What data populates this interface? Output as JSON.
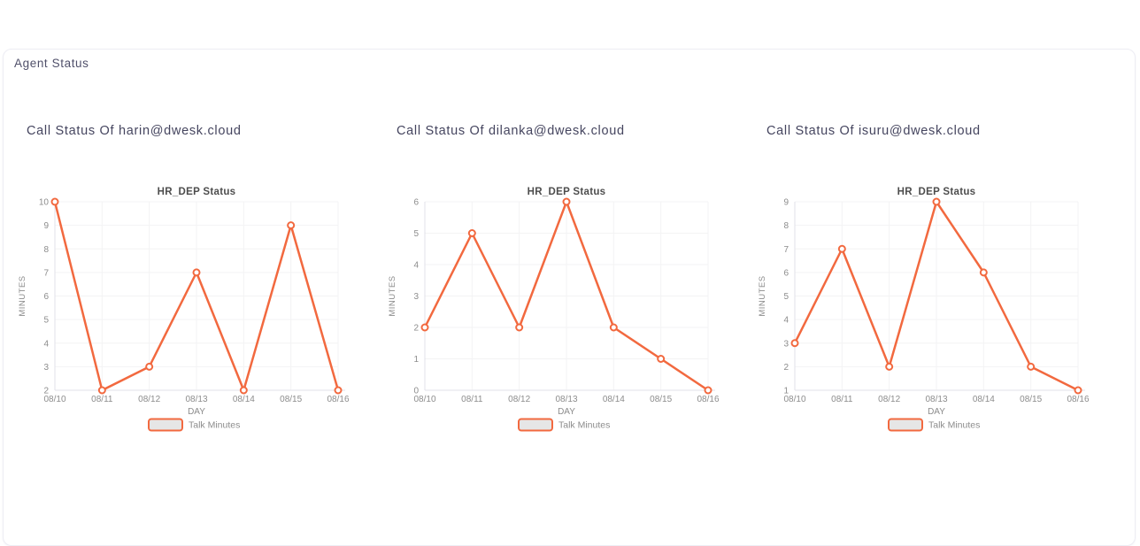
{
  "page": {
    "title": "Agent Status"
  },
  "colors": {
    "line": "#F2693F",
    "marker_fill": "#FFFFFF",
    "legend_fill": "#E6E6E6",
    "grid": "#F3F3F4",
    "axis_line": "#E2E2E8",
    "tick_text": "#8C8C8C",
    "axis_label_text": "#8C8C8C",
    "chart_title_text": "#4D4D4D",
    "heading_text": "#45455F"
  },
  "chart_data": [
    {
      "type": "line",
      "heading": "Call Status Of harin@dwesk.cloud",
      "title": "HR_DEP Status",
      "xlabel": "DAY",
      "ylabel": "MINUTES",
      "categories": [
        "08/10",
        "08/11",
        "08/12",
        "08/13",
        "08/14",
        "08/15",
        "08/16"
      ],
      "series": [
        {
          "name": "Talk Minutes",
          "values": [
            10,
            2,
            3,
            7,
            2,
            9,
            2
          ]
        }
      ],
      "ylim": [
        2,
        10
      ],
      "ytick_step": 1,
      "grid": true,
      "legend_position": "bottom"
    },
    {
      "type": "line",
      "heading": "Call Status Of dilanka@dwesk.cloud",
      "title": "HR_DEP Status",
      "xlabel": "DAY",
      "ylabel": "MINUTES",
      "categories": [
        "08/10",
        "08/11",
        "08/12",
        "08/13",
        "08/14",
        "08/15",
        "08/16"
      ],
      "series": [
        {
          "name": "Talk Minutes",
          "values": [
            2,
            5,
            2,
            6,
            2,
            1,
            0
          ]
        }
      ],
      "ylim": [
        0,
        6
      ],
      "ytick_step": 1,
      "grid": true,
      "legend_position": "bottom"
    },
    {
      "type": "line",
      "heading": "Call Status Of isuru@dwesk.cloud",
      "title": "HR_DEP Status",
      "xlabel": "DAY",
      "ylabel": "MINUTES",
      "categories": [
        "08/10",
        "08/11",
        "08/12",
        "08/13",
        "08/14",
        "08/15",
        "08/16"
      ],
      "series": [
        {
          "name": "Talk Minutes",
          "values": [
            3,
            7,
            2,
            9,
            6,
            2,
            1
          ]
        }
      ],
      "ylim": [
        1,
        9
      ],
      "ytick_step": 1,
      "grid": true,
      "legend_position": "bottom"
    }
  ]
}
